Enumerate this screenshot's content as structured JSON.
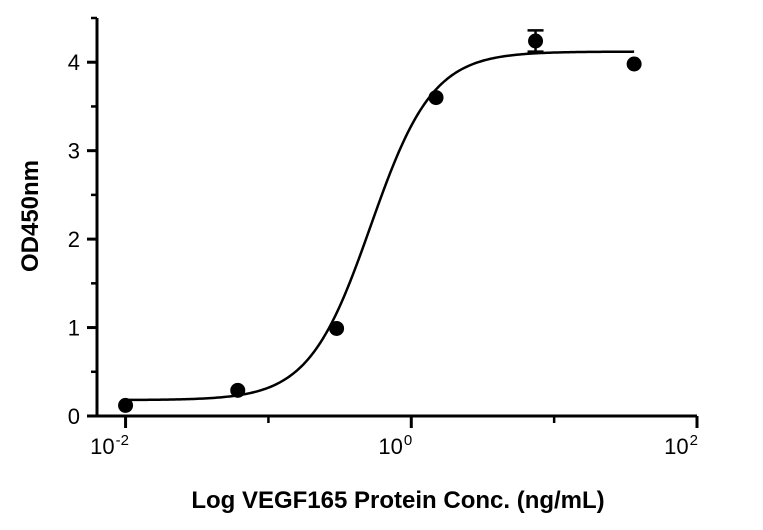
{
  "chart_data": {
    "type": "scatter",
    "title": "",
    "xlabel": "Log VEGF165 Protein Conc. (ng/mL)",
    "ylabel": "OD450nm",
    "x_scale": "log",
    "xlim": [
      0.00631,
      100
    ],
    "ylim": [
      0,
      4.5
    ],
    "x_ticks": [
      {
        "value": 0.01,
        "base": "10",
        "exp": "-2"
      },
      {
        "value": 1,
        "base": "10",
        "exp": "0"
      },
      {
        "value": 100,
        "base": "10",
        "exp": "2"
      }
    ],
    "y_ticks": [
      0,
      1,
      2,
      3,
      4
    ],
    "grid": false,
    "legend": "none",
    "points": [
      {
        "x": 0.01,
        "y": 0.12
      },
      {
        "x": 0.061,
        "y": 0.29
      },
      {
        "x": 0.3,
        "y": 0.99
      },
      {
        "x": 1.49,
        "y": 3.6
      },
      {
        "x": 7.41,
        "y": 4.24,
        "error": 0.12
      },
      {
        "x": 36.3,
        "y": 3.98
      }
    ],
    "fit": {
      "model": "4PL",
      "bottom": 0.18,
      "top": 4.12,
      "ec50": 0.52,
      "hill": 2.0,
      "x_range": [
        0.01,
        36.3
      ]
    },
    "colors": {
      "marks": "#000000"
    }
  }
}
